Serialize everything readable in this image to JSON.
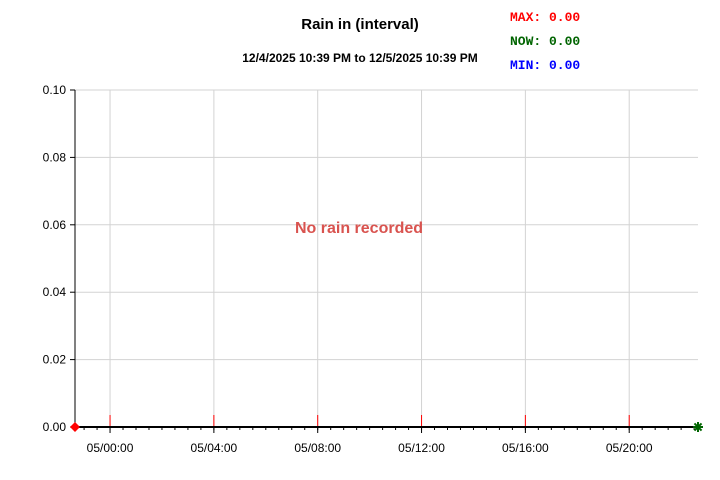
{
  "chart_data": {
    "type": "line",
    "title": "Rain in (interval)",
    "subtitle": "12/4/2025 10:39 PM to 12/5/2025 10:39 PM",
    "stats": [
      {
        "label": "MAX:",
        "value": "0.00",
        "color": "#ff0000"
      },
      {
        "label": "NOW:",
        "value": "0.00",
        "color": "#006400"
      },
      {
        "label": "MIN:",
        "value": "0.00",
        "color": "#0000ff"
      }
    ],
    "annotation": "No rain recorded",
    "annotation_color": "#d9534f",
    "xlabel": "",
    "ylabel": "",
    "x_ticks": [
      "05/00:00",
      "05/04:00",
      "05/08:00",
      "05/12:00",
      "05/16:00",
      "05/20:00"
    ],
    "x_tick_hours": [
      1.35,
      5.35,
      9.35,
      13.35,
      17.35,
      21.35
    ],
    "xlim_hours": [
      0,
      24
    ],
    "ylim": [
      0,
      0.1
    ],
    "y_ticks": [
      0.0,
      0.02,
      0.04,
      0.06,
      0.08,
      0.1
    ],
    "y_tick_labels": [
      "0.00",
      "0.02",
      "0.04",
      "0.06",
      "0.08",
      "0.10"
    ],
    "grid": true,
    "series": [
      {
        "x_hours": [
          0,
          24
        ],
        "values": [
          0.0,
          0.0
        ],
        "color": "#000000"
      }
    ],
    "markers": [
      {
        "shape": "diamond",
        "color": "#ff0000",
        "x_hours": 0,
        "value": 0.0
      },
      {
        "shape": "star",
        "color": "#006400",
        "x_hours": 24,
        "value": 0.0
      }
    ],
    "tick_marker_color": "#ff0000"
  }
}
